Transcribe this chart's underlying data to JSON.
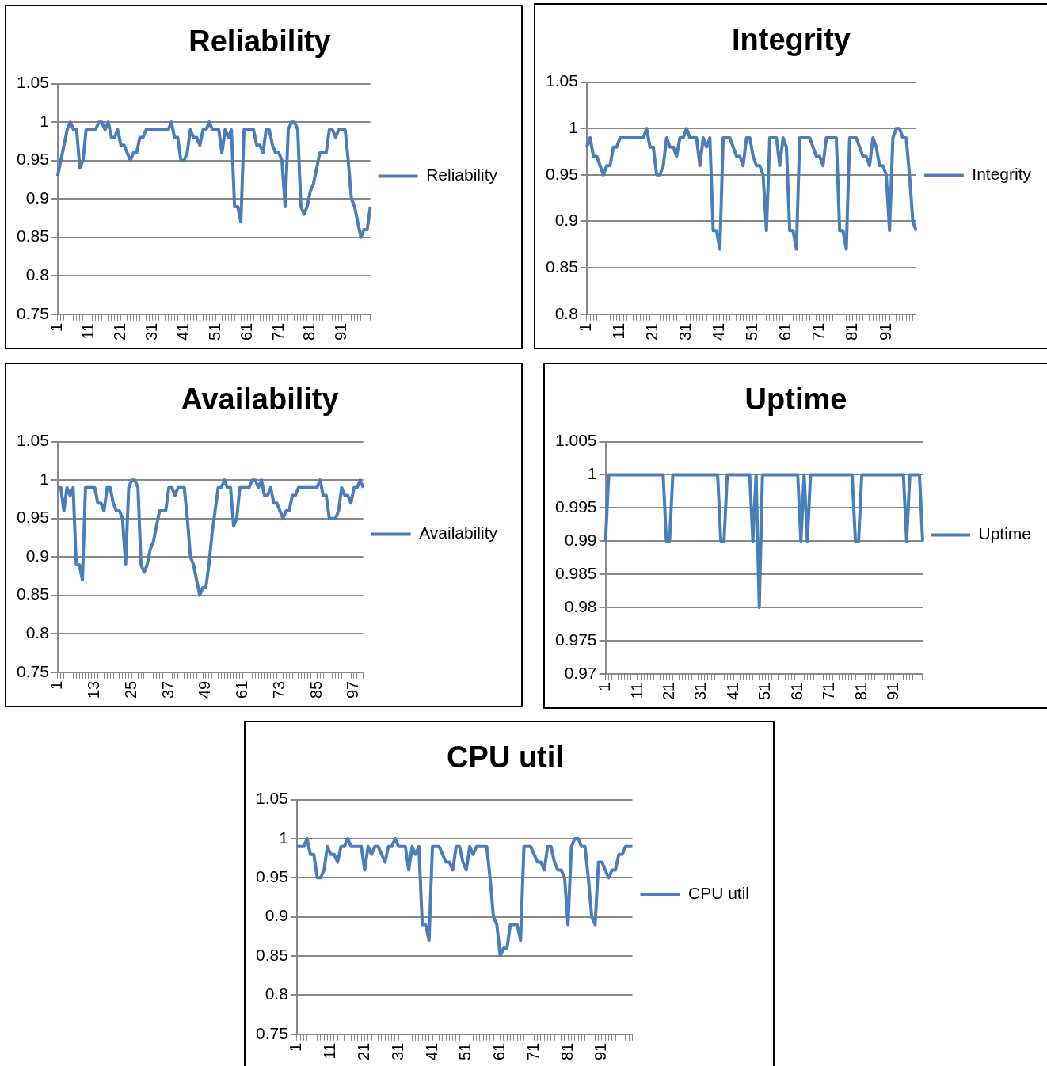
{
  "chart_data": [
    {
      "type": "line",
      "title": "Reliability",
      "categories": [
        "1",
        null,
        null,
        null,
        null,
        null,
        null,
        null,
        null,
        null,
        "11",
        null,
        null,
        null,
        null,
        null,
        null,
        null,
        null,
        null,
        "21",
        null,
        null,
        null,
        null,
        null,
        null,
        null,
        null,
        null,
        "31",
        null,
        null,
        null,
        null,
        null,
        null,
        null,
        null,
        null,
        "41",
        null,
        null,
        null,
        null,
        null,
        null,
        null,
        null,
        null,
        "51",
        null,
        null,
        null,
        null,
        null,
        null,
        null,
        null,
        null,
        "61",
        null,
        null,
        null,
        null,
        null,
        null,
        null,
        null,
        null,
        "71",
        null,
        null,
        null,
        null,
        null,
        null,
        null,
        null,
        null,
        "81",
        null,
        null,
        null,
        null,
        null,
        null,
        null,
        null,
        null,
        "91",
        null,
        null,
        null,
        null,
        null,
        null,
        null,
        null,
        null
      ],
      "series": [
        {
          "name": "Reliability",
          "color": "#4a7ebb",
          "values": [
            0.93,
            0.95,
            0.97,
            0.99,
            1.0,
            0.99,
            0.99,
            0.94,
            0.95,
            0.99,
            0.99,
            0.99,
            0.99,
            1.0,
            1.0,
            0.99,
            1.0,
            0.98,
            0.98,
            0.99,
            0.97,
            0.97,
            0.96,
            0.95,
            0.96,
            0.96,
            0.98,
            0.98,
            0.99,
            0.99,
            0.99,
            0.99,
            0.99,
            0.99,
            0.99,
            0.99,
            1.0,
            0.98,
            0.98,
            0.95,
            0.95,
            0.96,
            0.99,
            0.98,
            0.98,
            0.97,
            0.99,
            0.99,
            1.0,
            0.99,
            0.99,
            0.99,
            0.96,
            0.99,
            0.98,
            0.99,
            0.89,
            0.89,
            0.87,
            0.99,
            0.99,
            0.99,
            0.99,
            0.97,
            0.97,
            0.96,
            0.99,
            0.99,
            0.97,
            0.96,
            0.96,
            0.95,
            0.89,
            0.99,
            1.0,
            1.0,
            0.99,
            0.89,
            0.88,
            0.89,
            0.91,
            0.92,
            0.94,
            0.96,
            0.96,
            0.96,
            0.99,
            0.99,
            0.98,
            0.99,
            0.99,
            0.99,
            0.95,
            0.9,
            0.89,
            0.87,
            0.85,
            0.86,
            0.86,
            0.89
          ]
        }
      ],
      "ylim": [
        0.75,
        1.05
      ],
      "yticks": [
        0.75,
        0.8,
        0.85,
        0.9,
        0.95,
        1,
        1.05
      ],
      "grid": "y",
      "legend": "right",
      "marker": "none"
    },
    {
      "type": "line",
      "title": "Integrity",
      "categories": [
        "1",
        null,
        null,
        null,
        null,
        null,
        null,
        null,
        null,
        null,
        "11",
        null,
        null,
        null,
        null,
        null,
        null,
        null,
        null,
        null,
        "21",
        null,
        null,
        null,
        null,
        null,
        null,
        null,
        null,
        null,
        "31",
        null,
        null,
        null,
        null,
        null,
        null,
        null,
        null,
        null,
        "41",
        null,
        null,
        null,
        null,
        null,
        null,
        null,
        null,
        null,
        "51",
        null,
        null,
        null,
        null,
        null,
        null,
        null,
        null,
        null,
        "61",
        null,
        null,
        null,
        null,
        null,
        null,
        null,
        null,
        null,
        "71",
        null,
        null,
        null,
        null,
        null,
        null,
        null,
        null,
        null,
        "81",
        null,
        null,
        null,
        null,
        null,
        null,
        null,
        null,
        null,
        "91",
        null,
        null,
        null,
        null,
        null,
        null,
        null,
        null,
        null
      ],
      "series": [
        {
          "name": "Integrity",
          "color": "#4a7ebb",
          "values": [
            0.98,
            0.99,
            0.97,
            0.97,
            0.96,
            0.95,
            0.96,
            0.96,
            0.98,
            0.98,
            0.99,
            0.99,
            0.99,
            0.99,
            0.99,
            0.99,
            0.99,
            0.99,
            1.0,
            0.98,
            0.98,
            0.95,
            0.95,
            0.96,
            0.99,
            0.98,
            0.98,
            0.97,
            0.99,
            0.99,
            1.0,
            0.99,
            0.99,
            0.99,
            0.96,
            0.99,
            0.98,
            0.99,
            0.89,
            0.89,
            0.87,
            0.99,
            0.99,
            0.99,
            0.98,
            0.97,
            0.97,
            0.96,
            0.99,
            0.99,
            0.97,
            0.96,
            0.96,
            0.95,
            0.89,
            0.99,
            0.99,
            0.99,
            0.96,
            0.99,
            0.98,
            0.89,
            0.89,
            0.87,
            0.99,
            0.99,
            0.99,
            0.99,
            0.98,
            0.97,
            0.97,
            0.96,
            0.99,
            0.99,
            0.99,
            0.99,
            0.89,
            0.89,
            0.87,
            0.99,
            0.99,
            0.99,
            0.98,
            0.97,
            0.97,
            0.96,
            0.99,
            0.98,
            0.96,
            0.96,
            0.95,
            0.89,
            0.99,
            1.0,
            1.0,
            0.99,
            0.99,
            0.95,
            0.9,
            0.89
          ]
        }
      ],
      "ylim": [
        0.8,
        1.05
      ],
      "yticks": [
        0.8,
        0.85,
        0.9,
        0.95,
        1,
        1.05
      ],
      "grid": "y",
      "legend": "right",
      "marker": "none"
    },
    {
      "type": "line",
      "title": "Availability",
      "categories": [
        "1",
        null,
        null,
        null,
        null,
        null,
        null,
        null,
        null,
        null,
        null,
        null,
        "13",
        null,
        null,
        null,
        null,
        null,
        null,
        null,
        null,
        null,
        null,
        null,
        "25",
        null,
        null,
        null,
        null,
        null,
        null,
        null,
        null,
        null,
        null,
        null,
        "37",
        null,
        null,
        null,
        null,
        null,
        null,
        null,
        null,
        null,
        null,
        null,
        "49",
        null,
        null,
        null,
        null,
        null,
        null,
        null,
        null,
        null,
        null,
        null,
        "61",
        null,
        null,
        null,
        null,
        null,
        null,
        null,
        null,
        null,
        null,
        null,
        "73",
        null,
        null,
        null,
        null,
        null,
        null,
        null,
        null,
        null,
        null,
        null,
        "85",
        null,
        null,
        null,
        null,
        null,
        null,
        null,
        null,
        null,
        null,
        null,
        "97",
        null,
        null,
        null
      ],
      "series": [
        {
          "name": "Availability",
          "color": "#4a7ebb",
          "values": [
            0.99,
            0.99,
            0.96,
            0.99,
            0.98,
            0.99,
            0.89,
            0.89,
            0.87,
            0.99,
            0.99,
            0.99,
            0.99,
            0.97,
            0.97,
            0.96,
            0.99,
            0.99,
            0.97,
            0.96,
            0.96,
            0.95,
            0.89,
            0.99,
            1.0,
            1.0,
            0.99,
            0.89,
            0.88,
            0.89,
            0.91,
            0.92,
            0.94,
            0.96,
            0.96,
            0.96,
            0.99,
            0.99,
            0.98,
            0.99,
            0.99,
            0.99,
            0.95,
            0.9,
            0.89,
            0.87,
            0.85,
            0.86,
            0.86,
            0.89,
            0.93,
            0.96,
            0.99,
            0.99,
            1.0,
            0.99,
            0.99,
            0.94,
            0.95,
            0.99,
            0.99,
            0.99,
            0.99,
            1.0,
            1.0,
            0.99,
            1.0,
            0.98,
            0.98,
            0.99,
            0.97,
            0.97,
            0.96,
            0.95,
            0.96,
            0.96,
            0.98,
            0.98,
            0.99,
            0.99,
            0.99,
            0.99,
            0.99,
            0.99,
            0.99,
            1.0,
            0.98,
            0.98,
            0.95,
            0.95,
            0.95,
            0.96,
            0.99,
            0.98,
            0.98,
            0.97,
            0.99,
            0.99,
            1.0,
            0.99
          ]
        }
      ],
      "ylim": [
        0.75,
        1.05
      ],
      "yticks": [
        0.75,
        0.8,
        0.85,
        0.9,
        0.95,
        1,
        1.05
      ],
      "grid": "y",
      "legend": "right",
      "marker": "none"
    },
    {
      "type": "line",
      "title": "Uptime",
      "categories": [
        "1",
        null,
        null,
        null,
        null,
        null,
        null,
        null,
        null,
        null,
        "11",
        null,
        null,
        null,
        null,
        null,
        null,
        null,
        null,
        null,
        "21",
        null,
        null,
        null,
        null,
        null,
        null,
        null,
        null,
        null,
        "31",
        null,
        null,
        null,
        null,
        null,
        null,
        null,
        null,
        null,
        "41",
        null,
        null,
        null,
        null,
        null,
        null,
        null,
        null,
        null,
        "51",
        null,
        null,
        null,
        null,
        null,
        null,
        null,
        null,
        null,
        "61",
        null,
        null,
        null,
        null,
        null,
        null,
        null,
        null,
        null,
        "71",
        null,
        null,
        null,
        null,
        null,
        null,
        null,
        null,
        null,
        "81",
        null,
        null,
        null,
        null,
        null,
        null,
        null,
        null,
        null,
        "91",
        null,
        null,
        null,
        null,
        null,
        null,
        null,
        null,
        null
      ],
      "series": [
        {
          "name": "Uptime",
          "color": "#4a7ebb",
          "values": [
            0.99,
            1,
            1,
            1,
            1,
            1,
            1,
            1,
            1,
            1,
            1,
            1,
            1,
            1,
            1,
            1,
            1,
            1,
            1,
            0.99,
            0.99,
            1,
            1,
            1,
            1,
            1,
            1,
            1,
            1,
            1,
            1,
            1,
            1,
            1,
            1,
            1,
            0.99,
            0.99,
            1,
            1,
            1,
            1,
            1,
            1,
            1,
            1,
            0.99,
            1,
            0.98,
            1,
            1,
            1,
            1,
            1,
            1,
            1,
            1,
            1,
            1,
            1,
            1,
            0.99,
            1,
            0.99,
            1,
            1,
            1,
            1,
            1,
            1,
            1,
            1,
            1,
            1,
            1,
            1,
            1,
            1,
            0.99,
            0.99,
            1,
            1,
            1,
            1,
            1,
            1,
            1,
            1,
            1,
            1,
            1,
            1,
            1,
            1,
            0.99,
            1,
            1,
            1,
            1,
            0.99
          ]
        }
      ],
      "ylim": [
        0.97,
        1.005
      ],
      "yticks": [
        0.97,
        0.975,
        0.98,
        0.985,
        0.99,
        0.995,
        1,
        1.005
      ],
      "grid": "y",
      "legend": "right",
      "marker": "none"
    },
    {
      "type": "line",
      "title": "CPU util",
      "categories": [
        "1",
        null,
        null,
        null,
        null,
        null,
        null,
        null,
        null,
        null,
        "11",
        null,
        null,
        null,
        null,
        null,
        null,
        null,
        null,
        null,
        "21",
        null,
        null,
        null,
        null,
        null,
        null,
        null,
        null,
        null,
        "31",
        null,
        null,
        null,
        null,
        null,
        null,
        null,
        null,
        null,
        "41",
        null,
        null,
        null,
        null,
        null,
        null,
        null,
        null,
        null,
        "51",
        null,
        null,
        null,
        null,
        null,
        null,
        null,
        null,
        null,
        "61",
        null,
        null,
        null,
        null,
        null,
        null,
        null,
        null,
        null,
        "71",
        null,
        null,
        null,
        null,
        null,
        null,
        null,
        null,
        null,
        "81",
        null,
        null,
        null,
        null,
        null,
        null,
        null,
        null,
        null,
        "91",
        null,
        null,
        null,
        null,
        null,
        null,
        null,
        null,
        null
      ],
      "series": [
        {
          "name": "CPU util",
          "color": "#4a7ebb",
          "values": [
            0.99,
            0.99,
            0.99,
            1.0,
            0.98,
            0.98,
            0.95,
            0.95,
            0.96,
            0.99,
            0.98,
            0.98,
            0.97,
            0.99,
            0.99,
            1.0,
            0.99,
            0.99,
            0.99,
            0.99,
            0.96,
            0.99,
            0.98,
            0.99,
            0.99,
            0.98,
            0.97,
            0.99,
            0.99,
            1.0,
            0.99,
            0.99,
            0.99,
            0.96,
            0.99,
            0.98,
            0.99,
            0.89,
            0.89,
            0.87,
            0.99,
            0.99,
            0.99,
            0.98,
            0.97,
            0.97,
            0.96,
            0.99,
            0.99,
            0.97,
            0.96,
            0.99,
            0.98,
            0.99,
            0.99,
            0.99,
            0.99,
            0.95,
            0.9,
            0.89,
            0.85,
            0.86,
            0.86,
            0.89,
            0.89,
            0.89,
            0.87,
            0.99,
            0.99,
            0.99,
            0.98,
            0.97,
            0.97,
            0.96,
            0.99,
            0.99,
            0.97,
            0.96,
            0.96,
            0.95,
            0.89,
            0.99,
            1.0,
            1.0,
            0.99,
            0.99,
            0.95,
            0.9,
            0.89,
            0.97,
            0.97,
            0.96,
            0.95,
            0.96,
            0.96,
            0.98,
            0.98,
            0.99,
            0.99,
            0.99
          ]
        }
      ],
      "ylim": [
        0.75,
        1.05
      ],
      "yticks": [
        0.75,
        0.8,
        0.85,
        0.9,
        0.95,
        1,
        1.05
      ],
      "grid": "y",
      "legend": "right",
      "marker": "none"
    }
  ]
}
